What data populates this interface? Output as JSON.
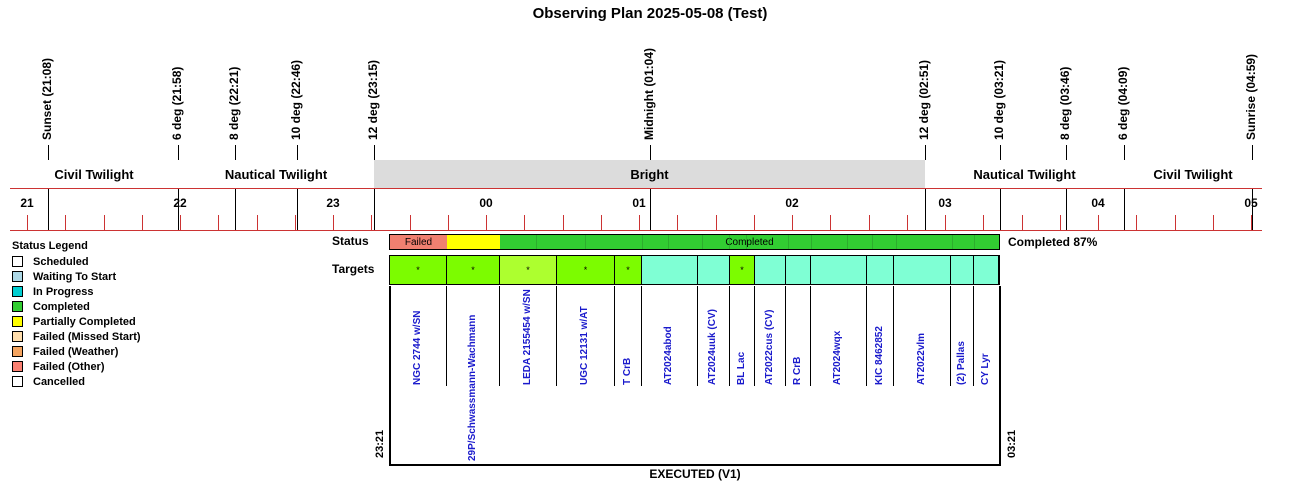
{
  "title": "Observing Plan 2025-05-08 (Test)",
  "events": [
    {
      "label": "Sunset (21:08)"
    },
    {
      "label": "6 deg (21:58)"
    },
    {
      "label": "8 deg (22:21)"
    },
    {
      "label": "10 deg (22:46)"
    },
    {
      "label": "12 deg (23:15)"
    },
    {
      "label": "Midnight (01:04)"
    },
    {
      "label": "12 deg (02:51)"
    },
    {
      "label": "10 deg (03:21)"
    },
    {
      "label": "8 deg (03:46)"
    },
    {
      "label": "6 deg (04:09)"
    },
    {
      "label": "Sunrise (04:59)"
    }
  ],
  "bands": [
    {
      "label": "Civil Twilight",
      "color": "#ffffff"
    },
    {
      "label": "Nautical Twilight",
      "color": "#ffffff"
    },
    {
      "label": "Bright",
      "color": "#dcdcdc"
    },
    {
      "label": "Nautical Twilight",
      "color": "#ffffff"
    },
    {
      "label": "Civil Twilight",
      "color": "#ffffff"
    }
  ],
  "hours": [
    "21",
    "22",
    "23",
    "00",
    "01",
    "02",
    "03",
    "04",
    "05"
  ],
  "legend": {
    "title": "Status Legend",
    "items": [
      {
        "label": "Scheduled",
        "color": "#ffffff"
      },
      {
        "label": "Waiting To Start",
        "color": "#add8e6"
      },
      {
        "label": "In Progress",
        "color": "#00ced1"
      },
      {
        "label": "Completed",
        "color": "#32cd32"
      },
      {
        "label": "Partially Completed",
        "color": "#ffff00"
      },
      {
        "label": "Failed (Missed Start)",
        "color": "#ffdead"
      },
      {
        "label": "Failed (Weather)",
        "color": "#f4a460"
      },
      {
        "label": "Failed (Other)",
        "color": "#fa8072"
      },
      {
        "label": "Cancelled",
        "color": "#ffffff"
      }
    ]
  },
  "status": {
    "row_label": "Status",
    "failed_label": "Failed",
    "completed_label": "Completed",
    "summary": "Completed 87%",
    "colors": {
      "failed": "#f08070",
      "partial": "#ffff00",
      "completed": "#32cd32"
    }
  },
  "targets_row_label": "Targets",
  "targets": [
    {
      "name": "NGC 2744 w/SN",
      "mark": "*",
      "color": "#7cfc00"
    },
    {
      "name": "29P/Schwassmann-Wachmann",
      "mark": "*",
      "color": "#7cfc00"
    },
    {
      "name": "LEDA 2155454 w/SN",
      "mark": "*",
      "color": "#adff2f"
    },
    {
      "name": "UGC 12131 w/AT",
      "mark": "*",
      "color": "#7cfc00"
    },
    {
      "name": "T CrB",
      "mark": "*",
      "color": "#7cfc00"
    },
    {
      "name": "AT2024abod",
      "mark": "",
      "color": "#7fffd4"
    },
    {
      "name": "AT2024uuk (CV)",
      "mark": "",
      "color": "#7fffd4"
    },
    {
      "name": "BL Lac",
      "mark": "*",
      "color": "#7cfc00"
    },
    {
      "name": "AT2022cus (CV)",
      "mark": "",
      "color": "#7fffd4"
    },
    {
      "name": "R CrB",
      "mark": "",
      "color": "#7fffd4"
    },
    {
      "name": "AT2024wqx",
      "mark": "",
      "color": "#7fffd4"
    },
    {
      "name": "KIC 8462852",
      "mark": "",
      "color": "#7fffd4"
    },
    {
      "name": "AT2022vlm",
      "mark": "",
      "color": "#7fffd4"
    },
    {
      "name": "(2) Pallas",
      "mark": "",
      "color": "#7fffd4"
    },
    {
      "name": "CY Lyr",
      "mark": "",
      "color": "#7fffd4"
    }
  ],
  "start_time": "23:21",
  "end_time": "03:21",
  "footer": "EXECUTED (V1)"
}
